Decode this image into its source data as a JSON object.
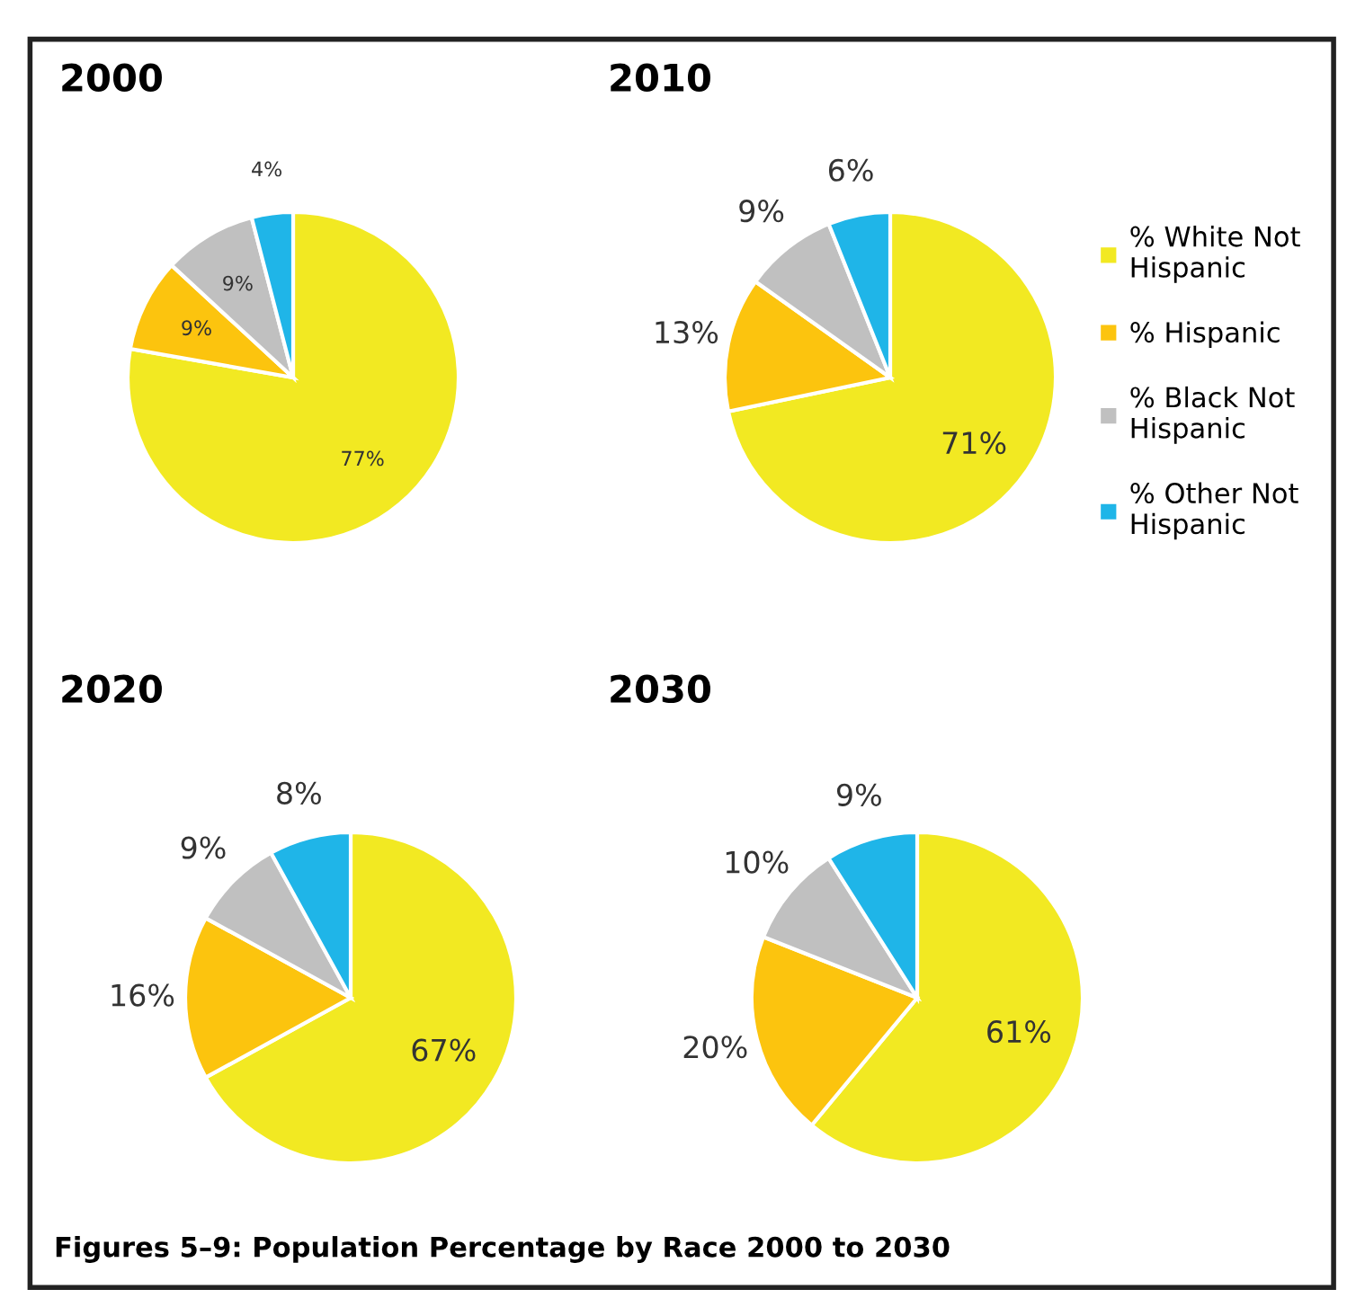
{
  "chart_data": [
    {
      "type": "pie",
      "title": "2000",
      "categories": [
        "% White Not Hispanic",
        "% Hispanic",
        "% Black Not Hispanic",
        "% Other Not Hispanic"
      ],
      "values": [
        77,
        9,
        9,
        4
      ],
      "colors": [
        "#f2e922",
        "#fcc40e",
        "#c0c0c0",
        "#1fb5e8"
      ],
      "value_labels": [
        "77%",
        "9%",
        "9%",
        "4%"
      ],
      "legend": "right"
    },
    {
      "type": "pie",
      "title": "2010",
      "categories": [
        null,
        null,
        null,
        null
      ],
      "values": [
        71,
        13,
        9,
        6
      ],
      "colors": [
        "#f2e922",
        "#fcc40e",
        "#c0c0c0",
        "#1fb5e8"
      ],
      "value_labels": [
        "71%",
        "13%",
        "9%",
        "6%"
      ]
    },
    {
      "type": "pie",
      "title": "2020",
      "categories": [
        null,
        null,
        null,
        null
      ],
      "values": [
        67,
        16,
        9,
        8
      ],
      "colors": [
        "#f2e922",
        "#fcc40e",
        "#c0c0c0",
        "#1fb5e8"
      ],
      "value_labels": [
        "67%",
        "16%",
        "9%",
        "8%"
      ]
    },
    {
      "type": "pie",
      "title": "2030",
      "categories": [
        null,
        null,
        null,
        null
      ],
      "values": [
        61,
        20,
        10,
        9
      ],
      "colors": [
        "#f2e922",
        "#fcc40e",
        "#c0c0c0",
        "#1fb5e8"
      ],
      "value_labels": [
        "61%",
        "20%",
        "10%",
        "9%"
      ],
      "annotations": [
        "Figures 5–9: Population Percentage by Race 2000 to 2030"
      ]
    }
  ]
}
